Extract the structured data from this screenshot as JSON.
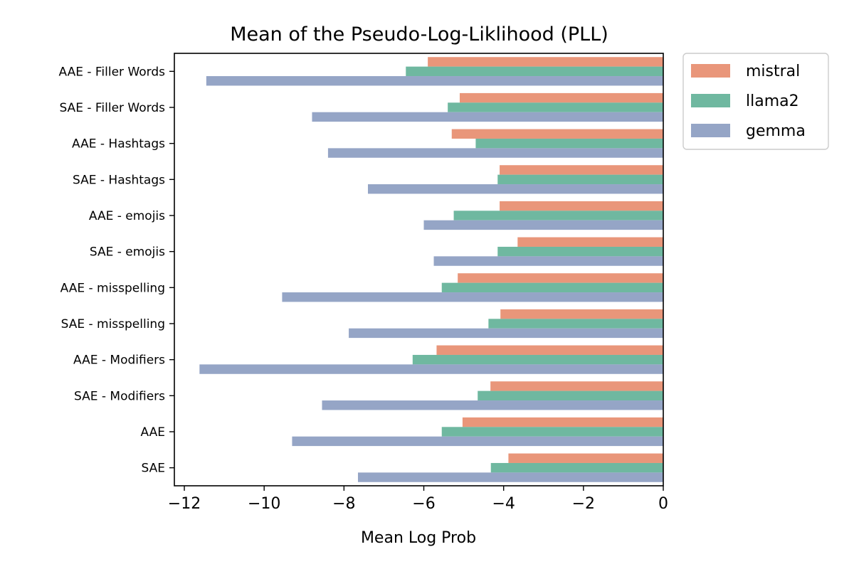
{
  "chart_data": {
    "type": "bar",
    "orientation": "horizontal",
    "title": "Mean of the Pseudo-Log-Liklihood (PLL)",
    "xlabel": "Mean Log Prob",
    "ylabel": "",
    "xlim": [
      -12.25,
      0
    ],
    "xticks": [
      -12,
      -10,
      -8,
      -6,
      -4,
      -2,
      0
    ],
    "xtick_labels": [
      "−12",
      "−10",
      "−8",
      "−6",
      "−4",
      "−2",
      "0"
    ],
    "grid": false,
    "legend_position": "outside-top-right",
    "categories": [
      "AAE - Filler Words",
      "SAE - Filler Words",
      "AAE - Hashtags",
      "SAE - Hashtags",
      "AAE - emojis",
      "SAE - emojis",
      "AAE - misspelling",
      "SAE - misspelling",
      "AAE - Modifiers",
      "SAE - Modifiers",
      "AAE",
      "SAE"
    ],
    "series": [
      {
        "name": "mistral",
        "color": "#e9967a",
        "values": [
          -5.9,
          -5.1,
          -5.3,
          -4.1,
          -4.1,
          -3.65,
          -5.15,
          -4.08,
          -5.68,
          -4.33,
          -5.03,
          -3.88
        ]
      },
      {
        "name": "llama2",
        "color": "#6fb8a0",
        "values": [
          -6.45,
          -5.4,
          -4.7,
          -4.15,
          -5.25,
          -4.15,
          -5.55,
          -4.38,
          -6.28,
          -4.65,
          -5.55,
          -4.32
        ]
      },
      {
        "name": "gemma",
        "color": "#95a5c6",
        "values": [
          -11.45,
          -8.8,
          -8.4,
          -7.4,
          -6.0,
          -5.75,
          -9.55,
          -7.88,
          -11.62,
          -8.55,
          -9.3,
          -7.65
        ]
      }
    ]
  }
}
